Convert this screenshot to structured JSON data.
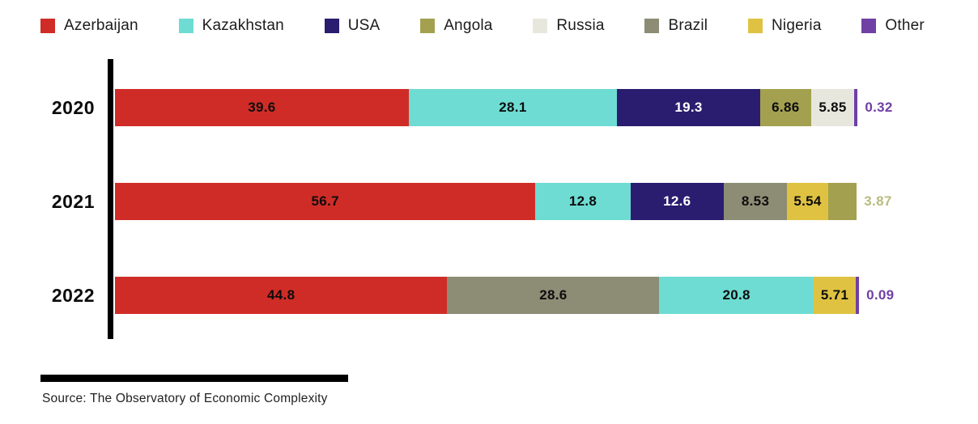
{
  "legend": {
    "items": [
      {
        "label": "Azerbaijan",
        "color": "#d02c27"
      },
      {
        "label": "Kazakhstan",
        "color": "#6edcd2"
      },
      {
        "label": "USA",
        "color": "#2a1d6f"
      },
      {
        "label": "Angola",
        "color": "#a3a150"
      },
      {
        "label": "Russia",
        "color": "#e8e7dd"
      },
      {
        "label": "Brazil",
        "color": "#8d8c75"
      },
      {
        "label": "Nigeria",
        "color": "#e0c242"
      },
      {
        "label": "Other",
        "color": "#7040a5"
      }
    ]
  },
  "chart_data": {
    "type": "bar",
    "orientation": "horizontal_stacked",
    "unit": "percent",
    "xlim": [
      0,
      100
    ],
    "grid": false,
    "legend_position": "top",
    "categories": [
      "2020",
      "2021",
      "2022"
    ],
    "series": [
      {
        "name": "Azerbaijan",
        "values": [
          39.6,
          56.7,
          44.8
        ]
      },
      {
        "name": "Kazachstan",
        "values": [
          28.1,
          12.8,
          20.8
        ]
      },
      {
        "name": "USA",
        "values": [
          19.3,
          12.6,
          null
        ]
      },
      {
        "name": "Angola",
        "values": [
          6.86,
          3.87,
          null
        ]
      },
      {
        "name": "Russia",
        "values": [
          5.85,
          null,
          null
        ]
      },
      {
        "name": "Brazil",
        "values": [
          null,
          8.53,
          28.6
        ]
      },
      {
        "name": "Nigeria",
        "values": [
          null,
          5.54,
          5.71
        ]
      },
      {
        "name": "Other",
        "values": [
          0.32,
          null,
          0.09
        ]
      }
    ],
    "rows": [
      {
        "category": "2020",
        "segments": [
          {
            "name": "Azerbaijan",
            "value": 39.6,
            "label": "39.6",
            "label_color": "#0d0d0d",
            "label_position": "inside"
          },
          {
            "name": "Kazakhstan",
            "value": 28.1,
            "label": "28.1",
            "label_color": "#0d0d0d",
            "label_position": "inside"
          },
          {
            "name": "USA",
            "value": 19.3,
            "label": "19.3",
            "label_color": "#ffffff",
            "label_position": "inside"
          },
          {
            "name": "Angola",
            "value": 6.86,
            "label": "6.86",
            "label_color": "#0d0d0d",
            "label_position": "inside"
          },
          {
            "name": "Russia",
            "value": 5.85,
            "label": "5.85",
            "label_color": "#0d0d0d",
            "label_position": "inside"
          },
          {
            "name": "Other",
            "value": 0.32,
            "label": "0.32",
            "label_color": "#7040a5",
            "label_position": "outside"
          }
        ]
      },
      {
        "category": "2021",
        "segments": [
          {
            "name": "Azerbaijan",
            "value": 56.7,
            "label": "56.7",
            "label_color": "#0d0d0d",
            "label_position": "inside"
          },
          {
            "name": "Kazakhstan",
            "value": 12.8,
            "label": "12.8",
            "label_color": "#0d0d0d",
            "label_position": "inside"
          },
          {
            "name": "USA",
            "value": 12.6,
            "label": "12.6",
            "label_color": "#ffffff",
            "label_position": "inside"
          },
          {
            "name": "Brazil",
            "value": 8.53,
            "label": "8.53",
            "label_color": "#0d0d0d",
            "label_position": "inside"
          },
          {
            "name": "Nigeria",
            "value": 5.54,
            "label": "5.54",
            "label_color": "#0d0d0d",
            "label_position": "inside"
          },
          {
            "name": "Angola",
            "value": 3.87,
            "label": "3.87",
            "label_color": "#b9bc7e",
            "label_position": "outside"
          }
        ]
      },
      {
        "category": "2022",
        "segments": [
          {
            "name": "Azerbaijan",
            "value": 44.8,
            "label": "44.8",
            "label_color": "#0d0d0d",
            "label_position": "inside"
          },
          {
            "name": "Brazil",
            "value": 28.6,
            "label": "28.6",
            "label_color": "#0d0d0d",
            "label_position": "inside"
          },
          {
            "name": "Kazakhstan",
            "value": 20.8,
            "label": "20.8",
            "label_color": "#0d0d0d",
            "label_position": "inside"
          },
          {
            "name": "Nigeria",
            "value": 5.71,
            "label": "5.71",
            "label_color": "#0d0d0d",
            "label_position": "inside"
          },
          {
            "name": "Other",
            "value": 0.09,
            "label": "0.09",
            "label_color": "#7040a5",
            "label_position": "outside"
          }
        ]
      }
    ]
  },
  "footer": {
    "source": "Source: The Observatory of Economic Complexity"
  }
}
